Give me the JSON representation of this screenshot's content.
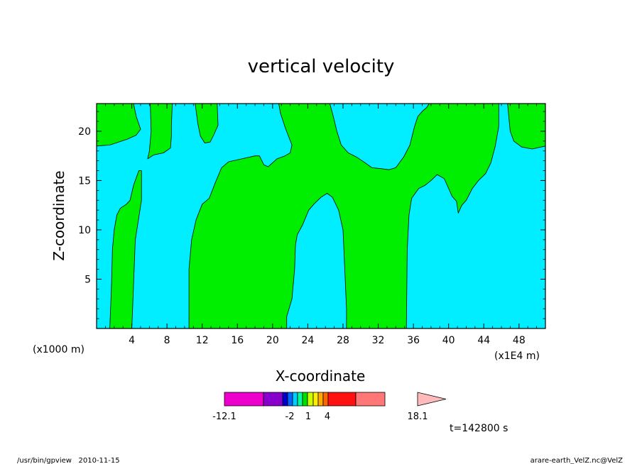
{
  "chart_data": {
    "type": "contour",
    "title": "vertical velocity",
    "xlabel": "X-coordinate",
    "ylabel": "Z-coordinate",
    "x_scale_note": "(x1000 m)",
    "x_scale_note_right": "(x1E4 m)",
    "xlim": [
      0,
      51
    ],
    "ylim": [
      0,
      22.8
    ],
    "x_ticks": [
      4,
      8,
      12,
      16,
      20,
      24,
      28,
      32,
      36,
      40,
      44,
      48
    ],
    "y_ticks": [
      5,
      10,
      15,
      20
    ],
    "background_level_color": "#00eeff",
    "positive_level_color": "#00ee00",
    "green_regions": [
      [
        [
          0,
          22.8
        ],
        [
          0,
          18.5
        ],
        [
          1.5,
          18.6
        ],
        [
          3.5,
          19.2
        ],
        [
          4.5,
          19.6
        ],
        [
          5,
          20.2
        ],
        [
          4.5,
          21.5
        ],
        [
          4.2,
          22.8
        ]
      ],
      [
        [
          1.5,
          0
        ],
        [
          1.7,
          4.5
        ],
        [
          1.8,
          8
        ],
        [
          2,
          10
        ],
        [
          2.3,
          11.5
        ],
        [
          2.7,
          12.2
        ],
        [
          3.4,
          12.6
        ],
        [
          3.8,
          13
        ],
        [
          4.2,
          14.5
        ],
        [
          4.8,
          16
        ],
        [
          5.1,
          16
        ],
        [
          5.1,
          13
        ],
        [
          4.4,
          9
        ],
        [
          4,
          0
        ]
      ],
      [
        [
          6.1,
          22.8
        ],
        [
          6.2,
          20
        ],
        [
          6,
          18
        ],
        [
          5.8,
          17.2
        ],
        [
          6.5,
          17.6
        ],
        [
          7.6,
          17.8
        ],
        [
          8.4,
          18.3
        ],
        [
          8.5,
          19.5
        ],
        [
          8.5,
          20.5
        ],
        [
          8.6,
          22.8
        ]
      ],
      [
        [
          11.2,
          22.8
        ],
        [
          11.5,
          20.8
        ],
        [
          11.8,
          19.5
        ],
        [
          12.3,
          18.8
        ],
        [
          12.9,
          18.9
        ],
        [
          13.3,
          19.6
        ],
        [
          13.8,
          20.6
        ],
        [
          13.7,
          22.8
        ]
      ],
      [
        [
          10.5,
          0
        ],
        [
          10.5,
          6
        ],
        [
          10.8,
          9
        ],
        [
          11.3,
          11
        ],
        [
          12,
          12.6
        ],
        [
          12.8,
          13.2
        ],
        [
          13.5,
          14.8
        ],
        [
          14.2,
          16.3
        ],
        [
          15,
          16.9
        ],
        [
          16.5,
          17.2
        ],
        [
          18,
          17.5
        ],
        [
          18.5,
          17.5
        ],
        [
          19,
          16.6
        ],
        [
          19.5,
          16.4
        ],
        [
          20,
          16.8
        ],
        [
          20.5,
          17.2
        ],
        [
          21.4,
          17.5
        ],
        [
          22,
          17.8
        ],
        [
          22.2,
          18.6
        ],
        [
          21.5,
          20.2
        ],
        [
          20.9,
          21.8
        ],
        [
          20.7,
          22.8
        ],
        [
          26.5,
          22.8
        ],
        [
          26.9,
          21.5
        ],
        [
          27.3,
          20
        ],
        [
          27.8,
          18.6
        ],
        [
          28.6,
          17.8
        ],
        [
          29.5,
          17.4
        ],
        [
          30.5,
          16.8
        ],
        [
          31.3,
          16.3
        ],
        [
          32.4,
          16.2
        ],
        [
          33.2,
          16.1
        ],
        [
          34,
          16.3
        ],
        [
          34.9,
          17.4
        ],
        [
          35.6,
          18.6
        ],
        [
          36.1,
          20.4
        ],
        [
          36.5,
          21.5
        ],
        [
          37,
          22
        ],
        [
          37.5,
          22.4
        ],
        [
          37.8,
          22.8
        ],
        [
          45.7,
          22.8
        ],
        [
          45.7,
          20.5
        ],
        [
          45.3,
          18.5
        ],
        [
          44.8,
          16.8
        ],
        [
          44.2,
          15.7
        ],
        [
          43.4,
          15
        ],
        [
          42.7,
          14.2
        ],
        [
          42,
          13
        ],
        [
          41.5,
          12.5
        ],
        [
          41.1,
          11.7
        ],
        [
          40.9,
          12.9
        ],
        [
          40.6,
          13.2
        ],
        [
          40.4,
          13.4
        ],
        [
          40,
          14.2
        ],
        [
          39.5,
          15.2
        ],
        [
          38.7,
          15.6
        ],
        [
          38,
          15
        ],
        [
          37.3,
          14.5
        ],
        [
          36.6,
          14.2
        ],
        [
          35.8,
          13.2
        ],
        [
          35.5,
          11.5
        ],
        [
          35.3,
          8
        ],
        [
          35.2,
          0
        ],
        [
          28.4,
          0
        ],
        [
          28.4,
          2
        ],
        [
          28.2,
          6
        ],
        [
          28,
          10
        ],
        [
          27.5,
          12
        ],
        [
          26.8,
          13.3
        ],
        [
          26.2,
          13.7
        ],
        [
          25.5,
          13.3
        ],
        [
          24.8,
          12.7
        ],
        [
          24.1,
          12
        ],
        [
          23.4,
          10.5
        ],
        [
          22.8,
          9.5
        ],
        [
          22.6,
          8.5
        ],
        [
          22.5,
          6
        ],
        [
          22.2,
          3
        ],
        [
          21.6,
          1.2
        ],
        [
          21.6,
          0
        ]
      ],
      [
        [
          46.7,
          22.8
        ],
        [
          47,
          20
        ],
        [
          47.4,
          19
        ],
        [
          48.3,
          18.4
        ],
        [
          49.5,
          18.2
        ],
        [
          51,
          18.5
        ],
        [
          51,
          22.8
        ]
      ]
    ],
    "colorbar": {
      "colors": [
        "#ee00cc",
        "#8800cc",
        "#0000cc",
        "#0066ff",
        "#00ccff",
        "#00ff99",
        "#00dd00",
        "#ccff00",
        "#ffee00",
        "#ffaa00",
        "#ff6600",
        "#ff1111",
        "#ff7777",
        "#ffbbbb"
      ],
      "labels": [
        "-12.1",
        "-2",
        "1",
        "4",
        "18.1"
      ]
    },
    "time_label": "t=142800 s"
  },
  "footer": {
    "left": "/usr/bin/gpview   2010-11-15",
    "right": "arare-earth_VelZ.nc@VelZ"
  }
}
